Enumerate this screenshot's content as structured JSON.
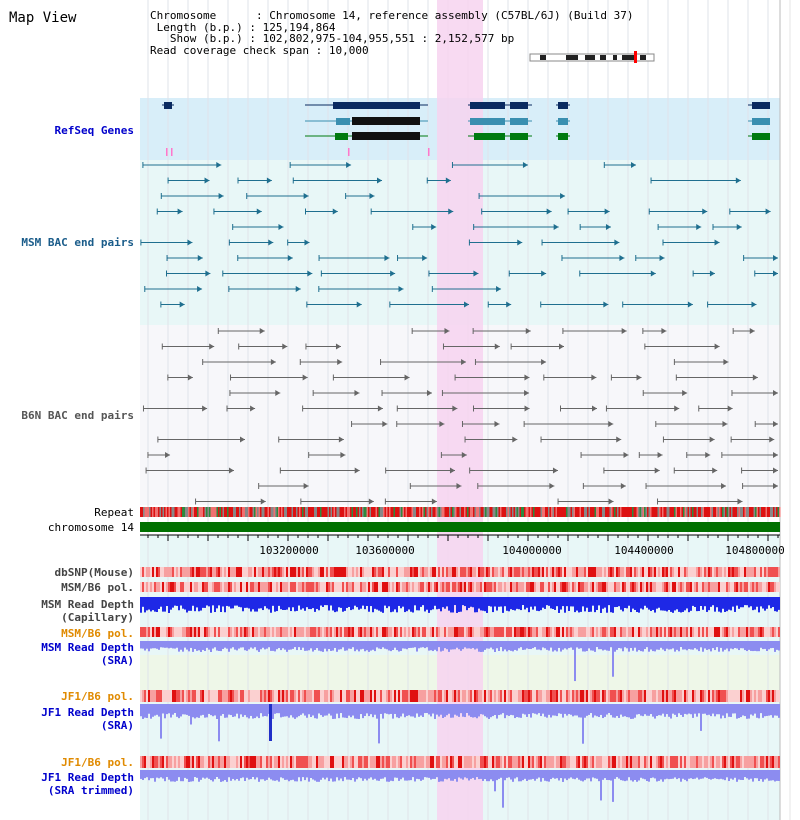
{
  "page_title": "Map View",
  "header": {
    "chromosome_key": "Chromosome",
    "chromosome_value": "Chromosome 14, reference assembly (C57BL/6J) (Build 37)",
    "length_key": "Length (b.p.)",
    "length_value": "125,194,864",
    "show_key": "Show (b.p.)",
    "show_value": "102,802,975-104,955,551 : 2,152,577 bp",
    "coverage_key": "Read coverage check span",
    "coverage_value": "10,000"
  },
  "tracks": {
    "refseq": "RefSeq Genes",
    "msm_bac": "MSM BAC end pairs",
    "b6n_bac": "B6N BAC end pairs",
    "repeat": "Repeat",
    "chromosome": "chromosome 14",
    "dbsnp": "dbSNP(Mouse)",
    "msm_b6_pol_1": "MSM/B6 pol.",
    "msm_read_depth_cap": "MSM Read Depth\n(Capillary)",
    "msm_b6_pol_2": "MSM/B6 pol.",
    "msm_read_depth_sra": "MSM Read Depth\n(SRA)",
    "jf1_b6_pol_1": "JF1/B6 pol.",
    "jf1_read_depth_sra": "JF1 Read Depth\n(SRA)",
    "jf1_b6_pol_2": "JF1/B6 pol.",
    "jf1_read_depth_trim": "JF1 Read Depth\n(SRA trimmed)"
  },
  "axis_ticks": [
    "103200000",
    "103600000",
    "104000000",
    "104400000",
    "104800000"
  ],
  "colors": {
    "highlight": "#f7d3f0",
    "refseq_bg": "#d8eef9",
    "msm_bg": "#e8f7f7",
    "chrom": "#007000",
    "teal": "#1f6f8f",
    "gray": "#666666",
    "navy": "#0a2a60",
    "green": "#007a10",
    "blue_depth": "#1e28e6",
    "light_blue_depth": "#8c8cf0"
  }
}
